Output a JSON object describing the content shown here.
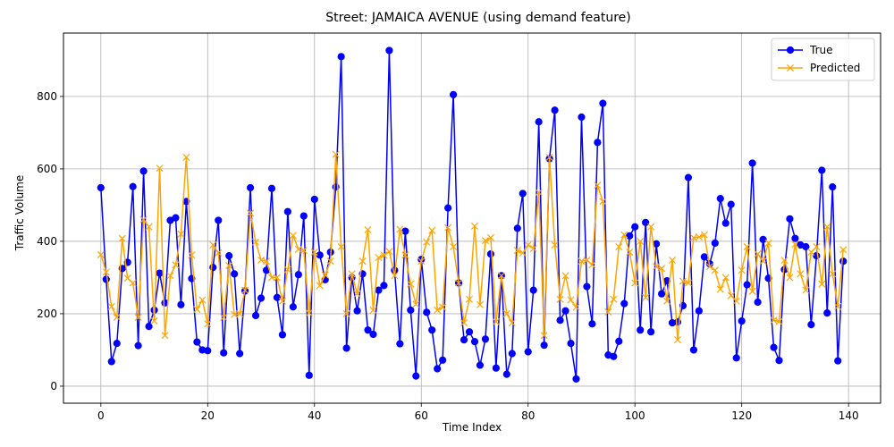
{
  "chart_data": {
    "type": "line",
    "title": "Street: JAMAICA AVENUE (using demand feature)",
    "xlabel": "Time Index",
    "ylabel": "Traffic Volume",
    "xlim": [
      -7,
      146
    ],
    "ylim": [
      -47,
      975
    ],
    "xticks": [
      0,
      20,
      40,
      60,
      80,
      100,
      120,
      140
    ],
    "yticks": [
      0,
      200,
      400,
      600,
      800
    ],
    "grid": true,
    "legend_position": "top-right",
    "x": [
      0,
      1,
      2,
      3,
      4,
      5,
      6,
      7,
      8,
      9,
      10,
      11,
      12,
      13,
      14,
      15,
      16,
      17,
      18,
      19,
      20,
      21,
      22,
      23,
      24,
      25,
      26,
      27,
      28,
      29,
      30,
      31,
      32,
      33,
      34,
      35,
      36,
      37,
      38,
      39,
      40,
      41,
      42,
      43,
      44,
      45,
      46,
      47,
      48,
      49,
      50,
      51,
      52,
      53,
      54,
      55,
      56,
      57,
      58,
      59,
      60,
      61,
      62,
      63,
      64,
      65,
      66,
      67,
      68,
      69,
      70,
      71,
      72,
      73,
      74,
      75,
      76,
      77,
      78,
      79,
      80,
      81,
      82,
      83,
      84,
      85,
      86,
      87,
      88,
      89,
      90,
      91,
      92,
      93,
      94,
      95,
      96,
      97,
      98,
      99,
      100,
      101,
      102,
      103,
      104,
      105,
      106,
      107,
      108,
      109,
      110,
      111,
      112,
      113,
      114,
      115,
      116,
      117,
      118,
      119,
      120,
      121,
      122,
      123,
      124,
      125,
      126,
      127,
      128,
      129,
      130,
      131,
      132,
      133,
      134,
      135,
      136,
      137,
      138,
      139
    ],
    "series": [
      {
        "name": "True",
        "color": "#0000ff",
        "marker": "circle",
        "values": [
          548,
          295,
          68,
          118,
          325,
          342,
          551,
          112,
          594,
          165,
          210,
          312,
          230,
          458,
          465,
          225,
          510,
          297,
          122,
          100,
          98,
          328,
          458,
          92,
          360,
          310,
          90,
          263,
          548,
          195,
          243,
          320,
          546,
          245,
          142,
          482,
          219,
          308,
          470,
          30,
          516,
          362,
          294,
          370,
          550,
          910,
          105,
          300,
          208,
          310,
          155,
          143,
          265,
          278,
          927,
          320,
          117,
          428,
          210,
          28,
          350,
          204,
          155,
          48,
          72,
          492,
          805,
          285,
          128,
          150,
          123,
          58,
          130,
          365,
          50,
          305,
          33,
          90,
          436,
          532,
          95,
          265,
          730,
          113,
          628,
          762,
          182,
          208,
          118,
          20,
          743,
          275,
          172,
          673,
          781,
          86,
          82,
          124,
          228,
          415,
          440,
          155,
          452,
          150,
          393,
          255,
          291,
          175,
          177,
          222,
          576,
          100,
          208,
          357,
          338,
          395,
          518,
          450,
          502,
          78,
          180,
          280,
          616,
          232,
          405,
          298,
          107,
          71,
          322,
          462,
          408,
          390,
          385,
          170,
          360,
          596,
          202,
          550,
          70,
          345
        ]
      },
      {
        "name": "Predicted",
        "color": "#ffa500",
        "marker": "x",
        "values": [
          363,
          315,
          220,
          190,
          408,
          298,
          285,
          190,
          460,
          440,
          180,
          602,
          140,
          305,
          335,
          420,
          632,
          362,
          212,
          238,
          172,
          390,
          368,
          190,
          333,
          198,
          200,
          265,
          478,
          398,
          348,
          345,
          300,
          300,
          235,
          322,
          416,
          378,
          375,
          202,
          370,
          278,
          307,
          345,
          640,
          385,
          200,
          310,
          255,
          345,
          432,
          210,
          355,
          362,
          372,
          305,
          433,
          362,
          282,
          226,
          345,
          398,
          430,
          210,
          218,
          438,
          385,
          285,
          175,
          240,
          442,
          225,
          402,
          410,
          178,
          305,
          200,
          175,
          375,
          368,
          390,
          380,
          535,
          140,
          632,
          390,
          240,
          305,
          238,
          218,
          345,
          348,
          335,
          555,
          510,
          205,
          240,
          385,
          418,
          370,
          285,
          400,
          245,
          440,
          330,
          325,
          235,
          348,
          128,
          290,
          285,
          410,
          412,
          418,
          330,
          320,
          268,
          300,
          250,
          235,
          320,
          385,
          262,
          365,
          345,
          395,
          182,
          178,
          348,
          300,
          392,
          310,
          265,
          370,
          385,
          282,
          440,
          310,
          220,
          377
        ]
      }
    ]
  }
}
